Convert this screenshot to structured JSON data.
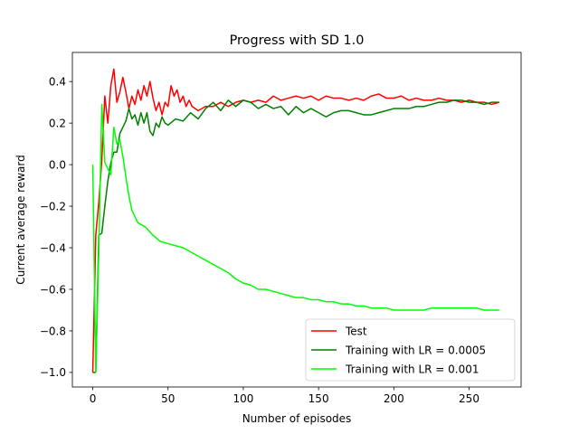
{
  "chart_data": {
    "type": "line",
    "title": "Progress with SD 1.0",
    "xlabel": "Number of episodes",
    "ylabel": "Current average reward",
    "xlim": [
      -13.55,
      284.55
    ],
    "ylim": [
      -1.07,
      0.54
    ],
    "xticks": [
      0,
      50,
      100,
      150,
      200,
      250
    ],
    "yticks": [
      -1.0,
      -0.8,
      -0.6,
      -0.4,
      -0.2,
      0.0,
      0.2,
      0.4
    ],
    "xtick_labels": [
      "0",
      "50",
      "100",
      "150",
      "200",
      "250"
    ],
    "ytick_labels": [
      "−1.0",
      "−0.8",
      "−0.6",
      "−0.4",
      "−0.2",
      "0.0",
      "0.2",
      "0.4"
    ],
    "grid": false,
    "legend_position": "lower right",
    "series": [
      {
        "name": "Test",
        "color": "#ff0000",
        "x": [
          0,
          2,
          4,
          6,
          8,
          10,
          12,
          14,
          16,
          18,
          20,
          22,
          24,
          26,
          28,
          30,
          32,
          34,
          36,
          38,
          40,
          42,
          44,
          46,
          48,
          50,
          52,
          54,
          56,
          58,
          60,
          62,
          64,
          66,
          68,
          70,
          75,
          80,
          85,
          90,
          95,
          100,
          105,
          110,
          115,
          120,
          125,
          130,
          135,
          140,
          145,
          150,
          155,
          160,
          165,
          170,
          175,
          180,
          185,
          190,
          195,
          200,
          205,
          210,
          215,
          220,
          225,
          230,
          235,
          240,
          245,
          250,
          255,
          260,
          265,
          270
        ],
        "values": [
          -1.0,
          -0.34,
          -0.18,
          0.02,
          0.33,
          0.2,
          0.38,
          0.46,
          0.3,
          0.35,
          0.42,
          0.35,
          0.27,
          0.33,
          0.29,
          0.36,
          0.31,
          0.38,
          0.33,
          0.4,
          0.32,
          0.26,
          0.3,
          0.24,
          0.3,
          0.28,
          0.38,
          0.33,
          0.36,
          0.3,
          0.33,
          0.28,
          0.31,
          0.28,
          0.27,
          0.26,
          0.28,
          0.28,
          0.3,
          0.28,
          0.3,
          0.31,
          0.3,
          0.31,
          0.3,
          0.33,
          0.31,
          0.32,
          0.33,
          0.32,
          0.33,
          0.31,
          0.33,
          0.32,
          0.32,
          0.31,
          0.32,
          0.31,
          0.33,
          0.34,
          0.32,
          0.32,
          0.33,
          0.31,
          0.32,
          0.31,
          0.31,
          0.32,
          0.31,
          0.31,
          0.3,
          0.31,
          0.3,
          0.3,
          0.29,
          0.3
        ]
      },
      {
        "name": "Training with LR = 0.0005",
        "color": "#008000",
        "x": [
          0,
          2,
          4,
          6,
          8,
          10,
          12,
          14,
          16,
          18,
          20,
          22,
          24,
          26,
          28,
          30,
          32,
          34,
          36,
          38,
          40,
          42,
          44,
          46,
          48,
          50,
          55,
          60,
          65,
          70,
          75,
          80,
          85,
          90,
          95,
          100,
          105,
          110,
          115,
          120,
          125,
          130,
          135,
          140,
          145,
          150,
          155,
          160,
          165,
          170,
          175,
          180,
          185,
          190,
          195,
          200,
          205,
          210,
          215,
          220,
          225,
          230,
          235,
          240,
          245,
          250,
          255,
          260,
          265,
          270
        ],
        "values": [
          -1.0,
          -1.0,
          -0.34,
          -0.33,
          -0.2,
          -0.08,
          0.01,
          0.06,
          0.06,
          0.15,
          0.18,
          0.21,
          0.27,
          0.22,
          0.24,
          0.19,
          0.25,
          0.2,
          0.25,
          0.16,
          0.14,
          0.2,
          0.18,
          0.23,
          0.2,
          0.19,
          0.22,
          0.21,
          0.25,
          0.22,
          0.27,
          0.3,
          0.26,
          0.31,
          0.28,
          0.31,
          0.3,
          0.27,
          0.29,
          0.27,
          0.28,
          0.24,
          0.28,
          0.25,
          0.27,
          0.25,
          0.23,
          0.25,
          0.26,
          0.26,
          0.25,
          0.24,
          0.24,
          0.25,
          0.26,
          0.27,
          0.27,
          0.27,
          0.28,
          0.28,
          0.29,
          0.3,
          0.3,
          0.31,
          0.31,
          0.3,
          0.3,
          0.29,
          0.3,
          0.3
        ]
      },
      {
        "name": "Training with LR = 0.001",
        "color": "#00ff00",
        "x": [
          0,
          2,
          4,
          6,
          8,
          10,
          12,
          14,
          16,
          18,
          20,
          22,
          24,
          26,
          28,
          30,
          35,
          40,
          45,
          50,
          55,
          60,
          65,
          70,
          75,
          80,
          85,
          90,
          95,
          100,
          105,
          110,
          115,
          120,
          125,
          130,
          135,
          140,
          145,
          150,
          155,
          160,
          165,
          170,
          175,
          180,
          185,
          190,
          195,
          200,
          205,
          210,
          215,
          220,
          225,
          230,
          235,
          240,
          245,
          250,
          255,
          260,
          265,
          270
        ],
        "values": [
          0.0,
          -1.0,
          -0.42,
          0.29,
          0.01,
          -0.02,
          -0.05,
          0.18,
          0.1,
          0.12,
          0.04,
          -0.06,
          -0.15,
          -0.22,
          -0.25,
          -0.28,
          -0.3,
          -0.34,
          -0.37,
          -0.38,
          -0.39,
          -0.4,
          -0.42,
          -0.44,
          -0.46,
          -0.48,
          -0.5,
          -0.52,
          -0.55,
          -0.57,
          -0.58,
          -0.6,
          -0.6,
          -0.61,
          -0.62,
          -0.63,
          -0.64,
          -0.64,
          -0.65,
          -0.65,
          -0.66,
          -0.66,
          -0.67,
          -0.67,
          -0.68,
          -0.68,
          -0.69,
          -0.69,
          -0.69,
          -0.7,
          -0.7,
          -0.7,
          -0.7,
          -0.7,
          -0.69,
          -0.69,
          -0.69,
          -0.69,
          -0.69,
          -0.69,
          -0.69,
          -0.7,
          -0.7,
          -0.7
        ]
      }
    ]
  }
}
